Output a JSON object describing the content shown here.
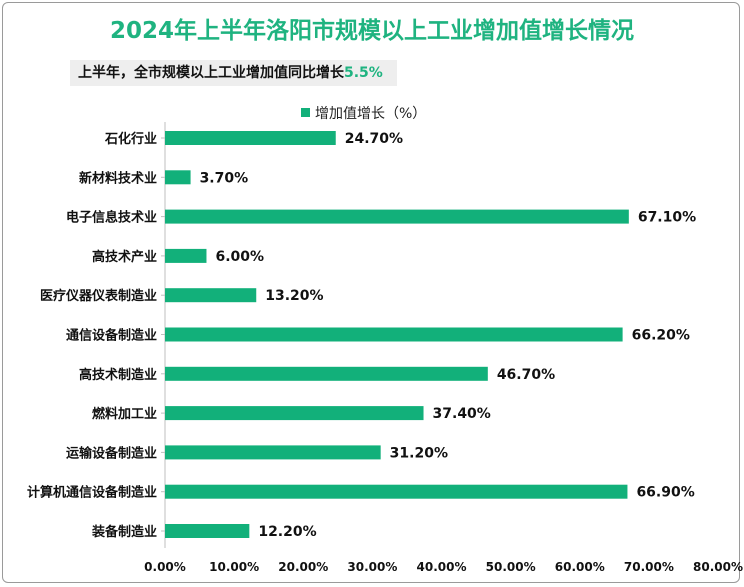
{
  "title": "2024年上半年洛阳市规模以上工业增加值增长情况",
  "subtitle_prefix": "上半年，全市规模以上工业增加值同比增长",
  "subtitle_value": "5.5%",
  "colors": {
    "bar": "#12b07a",
    "title": "#1fb380"
  },
  "chart_data": {
    "type": "bar",
    "orientation": "horizontal",
    "categories": [
      "石化行业",
      "新材料技术业",
      "电子信息技术业",
      "高技术产业",
      "医疗仪器仪表制造业",
      "通信设备制造业",
      "高技术制造业",
      "燃料加工业",
      "运输设备制造业",
      "计算机通信设备制造业",
      "装备制造业"
    ],
    "series": [
      {
        "name": "增加值增长（%）",
        "values": [
          24.7,
          3.7,
          67.1,
          6.0,
          13.2,
          66.2,
          46.7,
          37.4,
          31.2,
          66.9,
          12.2
        ]
      }
    ],
    "data_labels": [
      "24.70%",
      "3.70%",
      "67.10%",
      "6.00%",
      "13.20%",
      "66.20%",
      "46.70%",
      "37.40%",
      "31.20%",
      "66.90%",
      "12.20%"
    ],
    "xlim": [
      0,
      80
    ],
    "xticks": [
      0,
      10,
      20,
      30,
      40,
      50,
      60,
      70,
      80
    ],
    "xtick_labels": [
      "0.00%",
      "10.00%",
      "20.00%",
      "30.00%",
      "40.00%",
      "50.00%",
      "60.00%",
      "70.00%",
      "80.00%"
    ],
    "grid": false,
    "legend": "top"
  }
}
